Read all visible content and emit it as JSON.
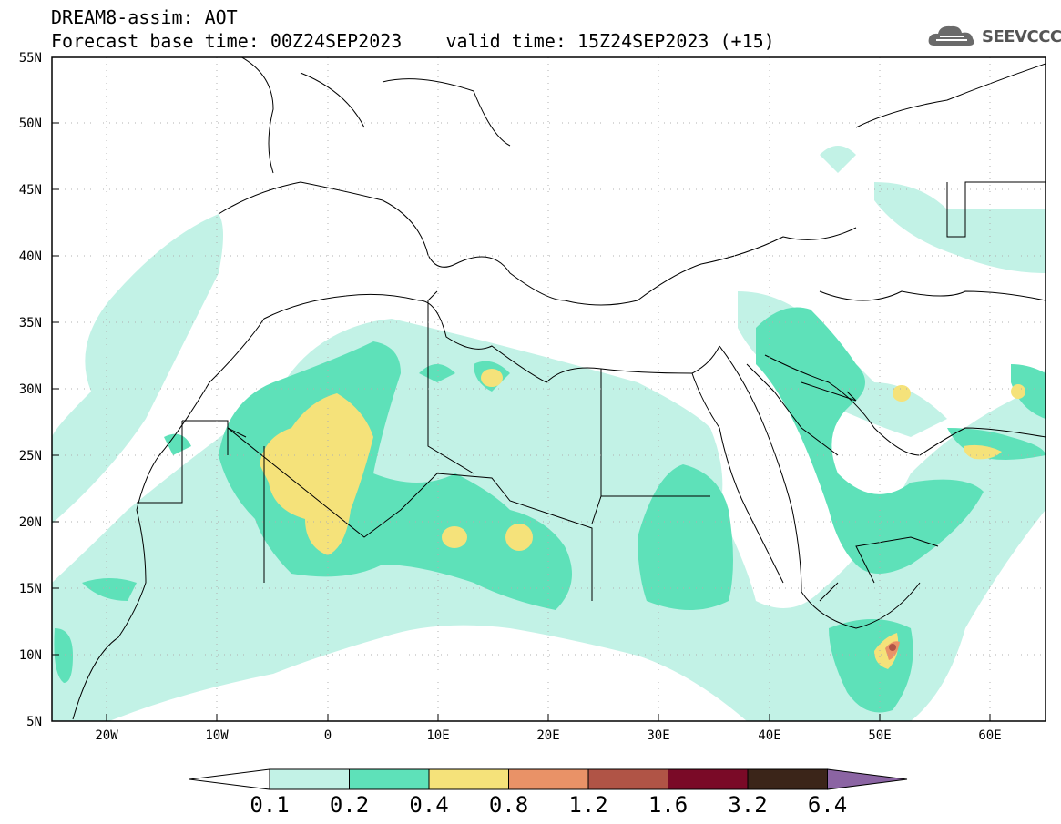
{
  "header": {
    "line1": "DREAM8-assim: AOT",
    "line2": "Forecast base time: 00Z24SEP2023    valid time: 15Z24SEP2023 (+15)"
  },
  "logo": {
    "text": "SEEVCCC",
    "icon": "cloud-icon"
  },
  "map": {
    "lon_range": [
      -25,
      65
    ],
    "lat_range": [
      5,
      55
    ],
    "lat_labels": [
      "5N",
      "10N",
      "15N",
      "20N",
      "25N",
      "30N",
      "35N",
      "40N",
      "45N",
      "50N",
      "55N"
    ],
    "lon_labels": [
      "20W",
      "10W",
      "0",
      "10E",
      "20E",
      "30E",
      "40E",
      "50E",
      "60E"
    ]
  },
  "colorbar": {
    "levels": [
      "0.1",
      "0.2",
      "0.4",
      "0.8",
      "1.2",
      "1.6",
      "3.2",
      "6.4"
    ],
    "colors": [
      "#c2f2e6",
      "#5ee1b9",
      "#f5e27a",
      "#e99267",
      "#b05446",
      "#7a0a27",
      "#3b2519",
      "#8b64a3"
    ]
  }
}
